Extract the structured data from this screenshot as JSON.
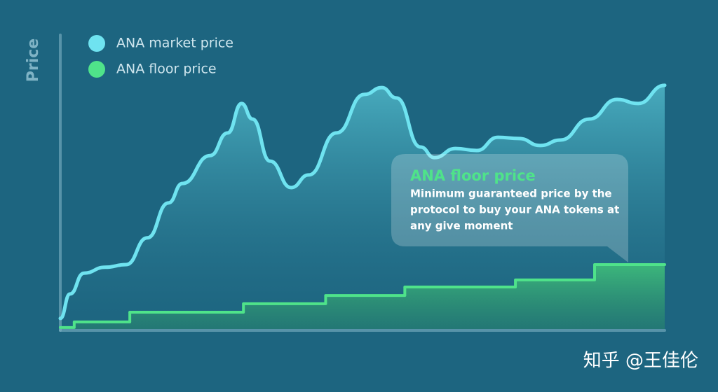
{
  "chart_data": {
    "type": "line",
    "y_label": "Price",
    "xlim": [
      0,
      100
    ],
    "ylim": [
      0,
      100
    ],
    "series": [
      {
        "name": "ANA market price",
        "color": "#6fe3f0",
        "x": [
          0,
          1.6,
          3.9,
          7.4,
          10.9,
          14.4,
          17.9,
          20.2,
          24.8,
          27.7,
          30.0,
          31.8,
          34.7,
          38.2,
          41.1,
          45.7,
          50.3,
          53.2,
          55.6,
          59.6,
          61.9,
          65.4,
          68.9,
          72.4,
          75.9,
          79.4,
          82.8,
          87.5,
          92.1,
          95.6,
          100
        ],
        "values": [
          3.6,
          11.9,
          19,
          21,
          21.9,
          31,
          42.9,
          49.5,
          59,
          66.7,
          76.7,
          71.4,
          57.1,
          48.1,
          52.4,
          66.7,
          79.8,
          82.1,
          78.6,
          61.9,
          58.3,
          61.4,
          60.7,
          65.2,
          64.8,
          62.4,
          64.3,
          71.4,
          78.1,
          76.7,
          82.9
        ]
      },
      {
        "name": "ANA floor price",
        "color": "#4fe38a",
        "step": true,
        "x": [
          0,
          2.3,
          11.5,
          30.3,
          43.9,
          57.0,
          75.3,
          88.4
        ],
        "values": [
          0.5,
          2.4,
          5.7,
          8.6,
          11.4,
          14.3,
          16.7,
          21.9
        ]
      }
    ],
    "callout": {
      "title": "ANA floor price",
      "lines": [
        "Minimum guaranteed price by the",
        "protocol to buy your ANA tokens at",
        "any give moment"
      ]
    },
    "watermark": "知乎 @王佳伦"
  }
}
